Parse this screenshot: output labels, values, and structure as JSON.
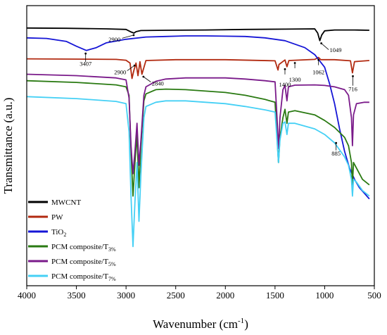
{
  "chart_data": {
    "type": "line",
    "title": "",
    "xlabel": "Wavenumber (cm",
    "xlabel_sup": "-1",
    "xlabel_end": ")",
    "ylabel": "Transmittance (a.u.)",
    "xlim": [
      4000,
      500
    ],
    "x_reversed": true,
    "y_ticks_shown": false,
    "xticks": [
      "4000",
      "3500",
      "3000",
      "2500",
      "2000",
      "1500",
      "1000",
      "500"
    ],
    "legend_position": "bottom-left",
    "series": [
      {
        "name": "MWCNT",
        "name_sub": "",
        "color": "#000000",
        "points": [
          [
            4000,
            0.08
          ],
          [
            3600,
            0.081
          ],
          [
            3200,
            0.083
          ],
          [
            3000,
            0.085
          ],
          [
            2950,
            0.094
          ],
          [
            2920,
            0.098
          ],
          [
            2900,
            0.093
          ],
          [
            2850,
            0.089
          ],
          [
            2600,
            0.088
          ],
          [
            2200,
            0.087
          ],
          [
            1800,
            0.085
          ],
          [
            1400,
            0.084
          ],
          [
            1100,
            0.083
          ],
          [
            1070,
            0.098
          ],
          [
            1049,
            0.125
          ],
          [
            1030,
            0.105
          ],
          [
            1000,
            0.09
          ],
          [
            900,
            0.087
          ],
          [
            700,
            0.087
          ],
          [
            550,
            0.088
          ]
        ]
      },
      {
        "name": "PW",
        "name_sub": "",
        "color": "#b22a10",
        "points": [
          [
            4000,
            0.19
          ],
          [
            3500,
            0.191
          ],
          [
            3100,
            0.192
          ],
          [
            3000,
            0.195
          ],
          [
            2960,
            0.205
          ],
          [
            2940,
            0.26
          ],
          [
            2920,
            0.23
          ],
          [
            2900,
            0.205
          ],
          [
            2880,
            0.25
          ],
          [
            2860,
            0.2
          ],
          [
            2840,
            0.245
          ],
          [
            2800,
            0.196
          ],
          [
            2500,
            0.193
          ],
          [
            2000,
            0.193
          ],
          [
            1500,
            0.197
          ],
          [
            1470,
            0.23
          ],
          [
            1460,
            0.21
          ],
          [
            1400,
            0.194
          ],
          [
            1380,
            0.218
          ],
          [
            1360,
            0.196
          ],
          [
            1100,
            0.192
          ],
          [
            1062,
            0.185
          ],
          [
            1040,
            0.193
          ],
          [
            900,
            0.193
          ],
          [
            740,
            0.197
          ],
          [
            720,
            0.24
          ],
          [
            700,
            0.2
          ],
          [
            550,
            0.196
          ]
        ]
      },
      {
        "name": "TiO",
        "name_sub": "2",
        "color": "#1515d6",
        "points": [
          [
            4000,
            0.115
          ],
          [
            3800,
            0.117
          ],
          [
            3600,
            0.128
          ],
          [
            3500,
            0.145
          ],
          [
            3400,
            0.16
          ],
          [
            3300,
            0.15
          ],
          [
            3200,
            0.133
          ],
          [
            3000,
            0.12
          ],
          [
            2800,
            0.112
          ],
          [
            2600,
            0.11
          ],
          [
            2400,
            0.108
          ],
          [
            2200,
            0.108
          ],
          [
            2000,
            0.109
          ],
          [
            1800,
            0.11
          ],
          [
            1600,
            0.115
          ],
          [
            1400,
            0.125
          ],
          [
            1200,
            0.15
          ],
          [
            1100,
            0.175
          ],
          [
            1000,
            0.22
          ],
          [
            950,
            0.28
          ],
          [
            900,
            0.35
          ],
          [
            850,
            0.44
          ],
          [
            800,
            0.52
          ],
          [
            750,
            0.58
          ],
          [
            700,
            0.62
          ],
          [
            650,
            0.65
          ],
          [
            600,
            0.67
          ],
          [
            550,
            0.69
          ]
        ]
      },
      {
        "name": "PCM composite/T",
        "name_sub": "3%",
        "color": "#2a7a12",
        "points": [
          [
            4000,
            0.268
          ],
          [
            3500,
            0.274
          ],
          [
            3100,
            0.283
          ],
          [
            3000,
            0.29
          ],
          [
            2970,
            0.32
          ],
          [
            2950,
            0.52
          ],
          [
            2930,
            0.68
          ],
          [
            2910,
            0.56
          ],
          [
            2890,
            0.46
          ],
          [
            2870,
            0.65
          ],
          [
            2850,
            0.5
          ],
          [
            2820,
            0.34
          ],
          [
            2800,
            0.315
          ],
          [
            2700,
            0.3
          ],
          [
            2600,
            0.298
          ],
          [
            2400,
            0.3
          ],
          [
            2200,
            0.305
          ],
          [
            2000,
            0.31
          ],
          [
            1800,
            0.32
          ],
          [
            1600,
            0.335
          ],
          [
            1500,
            0.345
          ],
          [
            1480,
            0.47
          ],
          [
            1465,
            0.56
          ],
          [
            1450,
            0.47
          ],
          [
            1420,
            0.4
          ],
          [
            1400,
            0.37
          ],
          [
            1380,
            0.42
          ],
          [
            1365,
            0.38
          ],
          [
            1300,
            0.375
          ],
          [
            1100,
            0.39
          ],
          [
            1000,
            0.41
          ],
          [
            900,
            0.435
          ],
          [
            800,
            0.47
          ],
          [
            760,
            0.5
          ],
          [
            730,
            0.56
          ],
          [
            720,
            0.64
          ],
          [
            710,
            0.56
          ],
          [
            680,
            0.58
          ],
          [
            620,
            0.62
          ],
          [
            550,
            0.64
          ]
        ]
      },
      {
        "name": "PCM composite/T",
        "name_sub": "5%",
        "color": "#7a1a8a",
        "points": [
          [
            4000,
            0.245
          ],
          [
            3500,
            0.25
          ],
          [
            3100,
            0.258
          ],
          [
            3000,
            0.265
          ],
          [
            2970,
            0.33
          ],
          [
            2950,
            0.5
          ],
          [
            2930,
            0.6
          ],
          [
            2910,
            0.52
          ],
          [
            2890,
            0.42
          ],
          [
            2870,
            0.57
          ],
          [
            2850,
            0.48
          ],
          [
            2820,
            0.32
          ],
          [
            2800,
            0.29
          ],
          [
            2700,
            0.27
          ],
          [
            2600,
            0.262
          ],
          [
            2400,
            0.258
          ],
          [
            2200,
            0.258
          ],
          [
            2000,
            0.258
          ],
          [
            1800,
            0.262
          ],
          [
            1600,
            0.268
          ],
          [
            1500,
            0.272
          ],
          [
            1480,
            0.4
          ],
          [
            1465,
            0.51
          ],
          [
            1450,
            0.4
          ],
          [
            1420,
            0.3
          ],
          [
            1400,
            0.285
          ],
          [
            1380,
            0.34
          ],
          [
            1365,
            0.29
          ],
          [
            1300,
            0.284
          ],
          [
            1100,
            0.283
          ],
          [
            1000,
            0.285
          ],
          [
            900,
            0.29
          ],
          [
            800,
            0.3
          ],
          [
            760,
            0.32
          ],
          [
            730,
            0.4
          ],
          [
            720,
            0.5
          ],
          [
            710,
            0.39
          ],
          [
            680,
            0.35
          ],
          [
            600,
            0.345
          ],
          [
            550,
            0.345
          ]
        ]
      },
      {
        "name": "PCM composite/T",
        "name_sub": "7%",
        "color": "#45d0f5",
        "points": [
          [
            4000,
            0.325
          ],
          [
            3500,
            0.332
          ],
          [
            3100,
            0.342
          ],
          [
            3000,
            0.35
          ],
          [
            2970,
            0.45
          ],
          [
            2950,
            0.68
          ],
          [
            2930,
            0.86
          ],
          [
            2910,
            0.7
          ],
          [
            2890,
            0.56
          ],
          [
            2870,
            0.77
          ],
          [
            2850,
            0.6
          ],
          [
            2820,
            0.4
          ],
          [
            2800,
            0.36
          ],
          [
            2700,
            0.345
          ],
          [
            2600,
            0.34
          ],
          [
            2400,
            0.34
          ],
          [
            2200,
            0.345
          ],
          [
            2000,
            0.35
          ],
          [
            1800,
            0.36
          ],
          [
            1600,
            0.372
          ],
          [
            1500,
            0.38
          ],
          [
            1480,
            0.48
          ],
          [
            1465,
            0.56
          ],
          [
            1450,
            0.48
          ],
          [
            1420,
            0.42
          ],
          [
            1400,
            0.415
          ],
          [
            1380,
            0.46
          ],
          [
            1365,
            0.42
          ],
          [
            1300,
            0.42
          ],
          [
            1100,
            0.44
          ],
          [
            1000,
            0.46
          ],
          [
            900,
            0.49
          ],
          [
            800,
            0.54
          ],
          [
            760,
            0.57
          ],
          [
            730,
            0.62
          ],
          [
            720,
            0.68
          ],
          [
            710,
            0.62
          ],
          [
            680,
            0.63
          ],
          [
            620,
            0.66
          ],
          [
            550,
            0.68
          ]
        ]
      }
    ],
    "annotations": [
      {
        "label": "2900",
        "x": 2900,
        "y": 0.098
      },
      {
        "label": "3407",
        "x": 3407,
        "y": 0.16
      },
      {
        "label": "1049",
        "x": 1049,
        "y": 0.125
      },
      {
        "label": "2900",
        "x": 2900,
        "y": 0.205
      },
      {
        "label": "2840",
        "x": 2840,
        "y": 0.245
      },
      {
        "label": "1400",
        "x": 1400,
        "y": 0.218
      },
      {
        "label": "1300",
        "x": 1300,
        "y": 0.196
      },
      {
        "label": "1062",
        "x": 1062,
        "y": 0.185
      },
      {
        "label": "716",
        "x": 716,
        "y": 0.24
      },
      {
        "label": "885",
        "x": 885,
        "y": 0.48
      }
    ]
  }
}
